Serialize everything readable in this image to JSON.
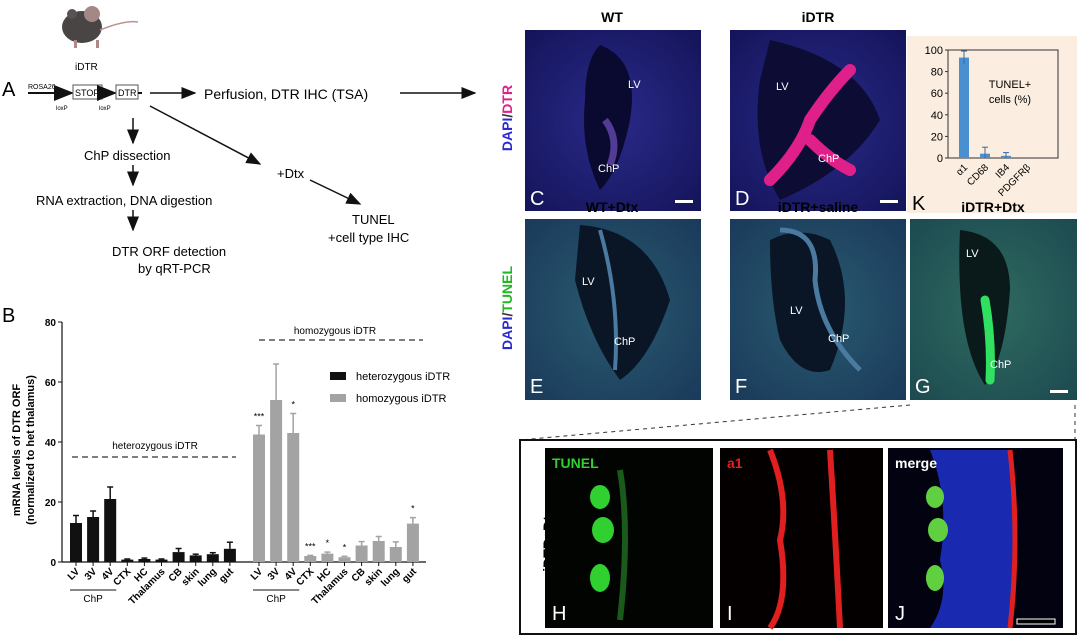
{
  "panelA": {
    "letter": "A",
    "mouse_label": "iDTR",
    "construct": {
      "locus": "ROSA26",
      "stop": "STOP",
      "dtr": "DTR",
      "loxp1": "loxP",
      "loxp2": "loxP"
    },
    "steps": {
      "perfusion": "Perfusion, DTR IHC (TSA)",
      "dissection": "ChP dissection",
      "rna": "RNA extraction, DNA digestion",
      "orf1": "DTR ORF detection",
      "orf2": "by qRT-PCR",
      "dtx": "+Dtx",
      "tunel1": "TUNEL",
      "tunel2": "+cell type IHC"
    }
  },
  "chart_data": [
    {
      "type": "bar",
      "panel": "B",
      "ylabel": "mRNA levels of DTR ORF",
      "ylabel2": "(normalized to het thalamus)",
      "ylim": [
        0,
        80
      ],
      "yticks": [
        "0",
        "20",
        "40",
        "60",
        "80"
      ],
      "categories": [
        "LV",
        "3V",
        "4V",
        "CTX",
        "HC",
        "Thalamus",
        "CB",
        "skin",
        "lung",
        "gut"
      ],
      "group_label": "ChP",
      "group_titles": {
        "het": "heterozygous iDTR",
        "hom": "homozygous iDTR"
      },
      "series": [
        {
          "name": "heterozygous  iDTR",
          "color": "#111111",
          "values": [
            13,
            15,
            21,
            0.8,
            1,
            0.8,
            3.3,
            2.2,
            2.6,
            4.4
          ],
          "errors": [
            2.5,
            2,
            4,
            0.2,
            0.3,
            0.2,
            1.2,
            0.4,
            0.5,
            2.2
          ],
          "sig": [
            "",
            "",
            "",
            "",
            "",
            "",
            "",
            "",
            "",
            ""
          ]
        },
        {
          "name": "homozygous iDTR",
          "color": "#a3a3a3",
          "values": [
            42.5,
            54,
            43,
            2,
            2.8,
            1.6,
            5.5,
            7,
            5,
            12.8
          ],
          "errors": [
            3,
            12,
            6.5,
            0.2,
            0.5,
            0.3,
            1.3,
            1.5,
            1.7,
            2
          ],
          "sig": [
            "***",
            "",
            "*",
            "***",
            "*",
            "*",
            "",
            "",
            "",
            "*"
          ]
        }
      ]
    },
    {
      "type": "bar",
      "panel": "K",
      "title": "TUNEL+",
      "title2": "cells (%)",
      "ylim": [
        0,
        100
      ],
      "yticks": [
        "0",
        "20",
        "40",
        "60",
        "80",
        "100"
      ],
      "categories": [
        "α1",
        "CD68",
        "IB4",
        "PDGFRβ"
      ],
      "values": [
        93,
        4,
        2,
        0
      ],
      "errors": [
        6,
        6,
        3,
        0
      ],
      "color": "#4a90d0"
    }
  ],
  "panelB": {
    "letter": "B"
  },
  "panelK": {
    "letter": "K"
  },
  "micrographs": {
    "row1_stain": {
      "a": "DAPI",
      "sep": "/",
      "b": "DTR"
    },
    "row2_stain": {
      "a": "DAPI",
      "sep": "/",
      "b": "TUNEL"
    },
    "C": {
      "letter": "C",
      "title": "WT",
      "lv": "LV",
      "chp": "ChP"
    },
    "D": {
      "letter": "D",
      "title": "iDTR",
      "lv": "LV",
      "chp": "ChP"
    },
    "E": {
      "letter": "E",
      "title": "WT+Dtx",
      "lv": "LV",
      "chp": "ChP"
    },
    "F": {
      "letter": "F",
      "title": "iDTR+saline",
      "lv": "LV",
      "chp": "ChP"
    },
    "G": {
      "letter": "G",
      "title": "iDTR+Dtx",
      "lv": "LV",
      "chp": "ChP"
    },
    "inset_label": "iDTR+Dtx",
    "H": {
      "letter": "H",
      "stain": "TUNEL"
    },
    "I": {
      "letter": "I",
      "stain": "a1"
    },
    "J": {
      "letter": "J",
      "stain": "merge"
    }
  },
  "colors": {
    "dapi": "#2a2ad0",
    "dtr": "#e0208a",
    "tunel": "#22c822",
    "a1": "#e02020",
    "k_bg": "#fbeee0"
  }
}
